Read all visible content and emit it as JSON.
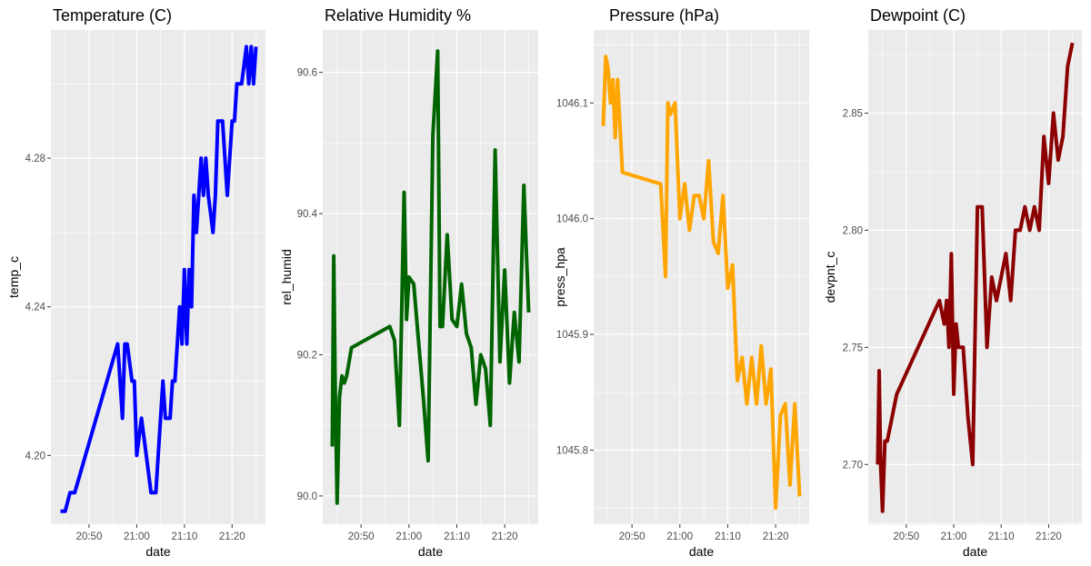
{
  "chart_data": [
    {
      "type": "line",
      "title": "Temperature (C)",
      "xlabel": "date",
      "ylabel": "temp_c",
      "color": "#0000ff",
      "xticks": [
        "20:50",
        "21:00",
        "21:10",
        "21:20"
      ],
      "xlim": [
        "20:42",
        "21:27"
      ],
      "yticks": [
        4.2,
        4.24,
        4.28
      ],
      "ylim": [
        4.1815,
        4.3145
      ],
      "grid": true,
      "x": [
        "20:44",
        "20:45",
        "20:46",
        "20:47",
        "20:56",
        "20:57",
        "20:57.5",
        "20:58",
        "20:59",
        "20:59.5",
        "21:00",
        "21:01",
        "21:02",
        "21:03",
        "21:04",
        "21:05",
        "21:05.5",
        "21:06",
        "21:07",
        "21:07.5",
        "21:08",
        "21:09",
        "21:09.5",
        "21:10",
        "21:10.5",
        "21:11",
        "21:11.5",
        "21:12",
        "21:12.5",
        "21:13",
        "21:13.5",
        "21:14",
        "21:14.5",
        "21:15",
        "21:16",
        "21:16.5",
        "21:17",
        "21:17.5",
        "21:18",
        "21:19",
        "21:20",
        "21:20.5",
        "21:21",
        "21:22",
        "21:23",
        "21:23.5",
        "21:24",
        "21:24.5",
        "21:25"
      ],
      "y": [
        4.185,
        4.185,
        4.19,
        4.19,
        4.23,
        4.21,
        4.23,
        4.23,
        4.22,
        4.22,
        4.2,
        4.21,
        4.2,
        4.19,
        4.19,
        4.21,
        4.22,
        4.21,
        4.21,
        4.22,
        4.22,
        4.24,
        4.23,
        4.25,
        4.23,
        4.25,
        4.24,
        4.27,
        4.26,
        4.27,
        4.28,
        4.27,
        4.28,
        4.27,
        4.26,
        4.27,
        4.29,
        4.29,
        4.29,
        4.27,
        4.29,
        4.29,
        4.3,
        4.3,
        4.31,
        4.3,
        4.31,
        4.3,
        4.31
      ]
    },
    {
      "type": "line",
      "title": "Relative Humidity %",
      "xlabel": "date",
      "ylabel": "rel_humid",
      "color": "#006400",
      "xticks": [
        "20:50",
        "21:00",
        "21:10",
        "21:20"
      ],
      "xlim": [
        "20:42",
        "21:27"
      ],
      "yticks": [
        90.0,
        90.2,
        90.4,
        90.6
      ],
      "ylim": [
        89.96,
        90.66
      ],
      "grid": true,
      "x": [
        "20:44",
        "20:44.3",
        "20:44.6",
        "20:45",
        "20:45.5",
        "20:46",
        "20:46.5",
        "20:47",
        "20:48",
        "20:56",
        "20:57",
        "20:58",
        "20:59",
        "20:59.5",
        "21:00",
        "21:01",
        "21:02",
        "21:03",
        "21:04",
        "21:05",
        "21:06",
        "21:06.5",
        "21:07",
        "21:08",
        "21:09",
        "21:10",
        "21:11",
        "21:12",
        "21:13",
        "21:14",
        "21:15",
        "21:16",
        "21:17",
        "21:18",
        "21:19",
        "21:20",
        "21:21",
        "21:22",
        "21:23",
        "21:24",
        "21:25"
      ],
      "y": [
        90.07,
        90.34,
        90.16,
        89.99,
        90.14,
        90.17,
        90.16,
        90.17,
        90.21,
        90.24,
        90.22,
        90.1,
        90.43,
        90.25,
        90.31,
        90.3,
        90.22,
        90.14,
        90.05,
        90.51,
        90.63,
        90.24,
        90.24,
        90.37,
        90.25,
        90.24,
        90.3,
        90.23,
        90.21,
        90.13,
        90.2,
        90.18,
        90.1,
        90.49,
        90.19,
        90.32,
        90.16,
        90.26,
        90.19,
        90.44,
        90.26
      ]
    },
    {
      "type": "line",
      "title": "Pressure (hPa)",
      "xlabel": "date",
      "ylabel": "press_hpa",
      "color": "#ffa500",
      "xticks": [
        "20:50",
        "21:00",
        "21:10",
        "21:20"
      ],
      "xlim": [
        "20:42",
        "21:27"
      ],
      "yticks": [
        1045.8,
        1045.9,
        1046.0,
        1046.1
      ],
      "ylim": [
        1045.736,
        1046.163
      ],
      "grid": true,
      "x": [
        "20:44",
        "20:44.5",
        "20:45",
        "20:45.5",
        "20:46",
        "20:46.5",
        "20:47",
        "20:48",
        "20:56",
        "20:57",
        "20:57.5",
        "20:58",
        "20:59",
        "21:00",
        "21:01",
        "21:02",
        "21:03",
        "21:04",
        "21:05",
        "21:06",
        "21:07",
        "21:08",
        "21:09",
        "21:10",
        "21:11",
        "21:12",
        "21:13",
        "21:14",
        "21:15",
        "21:16",
        "21:17",
        "21:18",
        "21:19",
        "21:20",
        "21:21",
        "21:22",
        "21:23",
        "21:24",
        "21:25"
      ],
      "y": [
        1046.08,
        1046.14,
        1046.13,
        1046.1,
        1046.12,
        1046.07,
        1046.12,
        1046.04,
        1046.03,
        1045.95,
        1046.1,
        1046.09,
        1046.1,
        1046.0,
        1046.03,
        1045.99,
        1046.02,
        1046.02,
        1046.0,
        1046.05,
        1045.98,
        1045.97,
        1046.02,
        1045.94,
        1045.96,
        1045.86,
        1045.88,
        1045.84,
        1045.88,
        1045.84,
        1045.89,
        1045.84,
        1045.87,
        1045.75,
        1045.83,
        1045.84,
        1045.77,
        1045.84,
        1045.76
      ]
    },
    {
      "type": "line",
      "title": "Dewpoint (C)",
      "xlabel": "date",
      "ylabel": "devpnt_c",
      "color": "#8b0000",
      "xticks": [
        "20:50",
        "21:00",
        "21:10",
        "21:20"
      ],
      "xlim": [
        "20:42",
        "21:27"
      ],
      "yticks": [
        2.7,
        2.75,
        2.8,
        2.85
      ],
      "ylim": [
        2.6745,
        2.8855
      ],
      "grid": true,
      "x": [
        "20:44",
        "20:44.3",
        "20:44.6",
        "20:45",
        "20:45.5",
        "20:46",
        "20:47",
        "20:48",
        "20:57",
        "20:58",
        "20:58.5",
        "20:59",
        "20:59.5",
        "21:00",
        "21:00.5",
        "21:01",
        "21:02",
        "21:03",
        "21:04",
        "21:05",
        "21:06",
        "21:07",
        "21:08",
        "21:09",
        "21:10",
        "21:11",
        "21:12",
        "21:13",
        "21:14",
        "21:15",
        "21:16",
        "21:17",
        "21:18",
        "21:19",
        "21:20",
        "21:21",
        "21:22",
        "21:23",
        "21:24",
        "21:25"
      ],
      "y": [
        2.7,
        2.74,
        2.7,
        2.68,
        2.71,
        2.71,
        2.72,
        2.73,
        2.77,
        2.76,
        2.77,
        2.75,
        2.79,
        2.73,
        2.76,
        2.75,
        2.75,
        2.72,
        2.7,
        2.81,
        2.81,
        2.75,
        2.78,
        2.77,
        2.78,
        2.79,
        2.77,
        2.8,
        2.8,
        2.81,
        2.8,
        2.81,
        2.8,
        2.84,
        2.82,
        2.85,
        2.83,
        2.84,
        2.87,
        2.88
      ]
    }
  ]
}
